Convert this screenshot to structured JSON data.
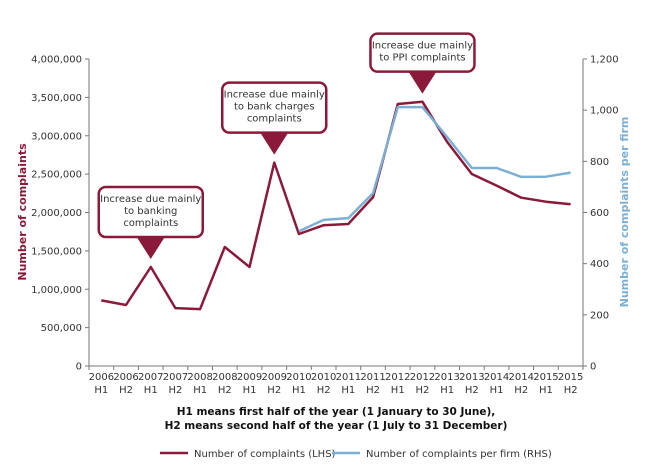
{
  "colors": {
    "lhs": "#8B1A3A",
    "rhs": "#7BAFD4",
    "axis": "#777777"
  },
  "chart_data": {
    "type": "line",
    "title": "",
    "categories": [
      [
        "2006",
        "H1"
      ],
      [
        "2006",
        "H2"
      ],
      [
        "2007",
        "H1"
      ],
      [
        "2007",
        "H2"
      ],
      [
        "2008",
        "H1"
      ],
      [
        "2008",
        "H2"
      ],
      [
        "2009",
        "H1"
      ],
      [
        "2009",
        "H2"
      ],
      [
        "2010",
        "H1"
      ],
      [
        "2010",
        "H2"
      ],
      [
        "2011",
        "H1"
      ],
      [
        "2011",
        "H2"
      ],
      [
        "2012",
        "H1"
      ],
      [
        "2012",
        "H2"
      ],
      [
        "2013",
        "H1"
      ],
      [
        "2013",
        "H2"
      ],
      [
        "2014",
        "H1"
      ],
      [
        "2014",
        "H2"
      ],
      [
        "2015",
        "H1"
      ],
      [
        "2015",
        "H2"
      ]
    ],
    "xlabel_line1": "H1 means first half of the year (1 January to 30 June),",
    "xlabel_line2": "H2 means second half of the year (1 July to 31 December)",
    "ylabel_left": "Number of complaints",
    "ylabel_right": "Number of complaints per firm",
    "ylim_left": [
      0,
      4000000
    ],
    "ylim_right": [
      0,
      1200
    ],
    "yticks_left": [
      "0",
      "500,000",
      "1,000,000",
      "1,500,000",
      "2,000,000",
      "2,500,000",
      "3,000,000",
      "3,500,000",
      "4,000,000"
    ],
    "yticks_right": [
      "0",
      "200",
      "400",
      "600",
      "800",
      "1,000",
      "1,200"
    ],
    "grid": false,
    "legend_position": "bottom",
    "series": [
      {
        "name": "Number of complaints (LHS)",
        "axis": "left",
        "values": [
          855000,
          795000,
          1290000,
          755000,
          742000,
          1550000,
          1290000,
          2650000,
          1720000,
          1835000,
          1850000,
          2200000,
          3414000,
          3444000,
          2920000,
          2502000,
          2350000,
          2193000,
          2141000,
          2107000
        ]
      },
      {
        "name": "Number of complaints per firm (RHS)",
        "axis": "right",
        "values": [
          null,
          null,
          null,
          null,
          null,
          null,
          null,
          null,
          527,
          571,
          578,
          676,
          1012,
          1012,
          895,
          774,
          774,
          739,
          740,
          756
        ]
      }
    ],
    "annotations": [
      {
        "text": [
          "Increase due mainly",
          "to banking",
          "complaints"
        ],
        "category_index": 2
      },
      {
        "text": [
          "Increase due mainly",
          "to bank charges",
          "complaints"
        ],
        "category_index": 7
      },
      {
        "text": [
          "Increase due mainly",
          "to PPI complaints"
        ],
        "category_index": 13
      }
    ]
  }
}
